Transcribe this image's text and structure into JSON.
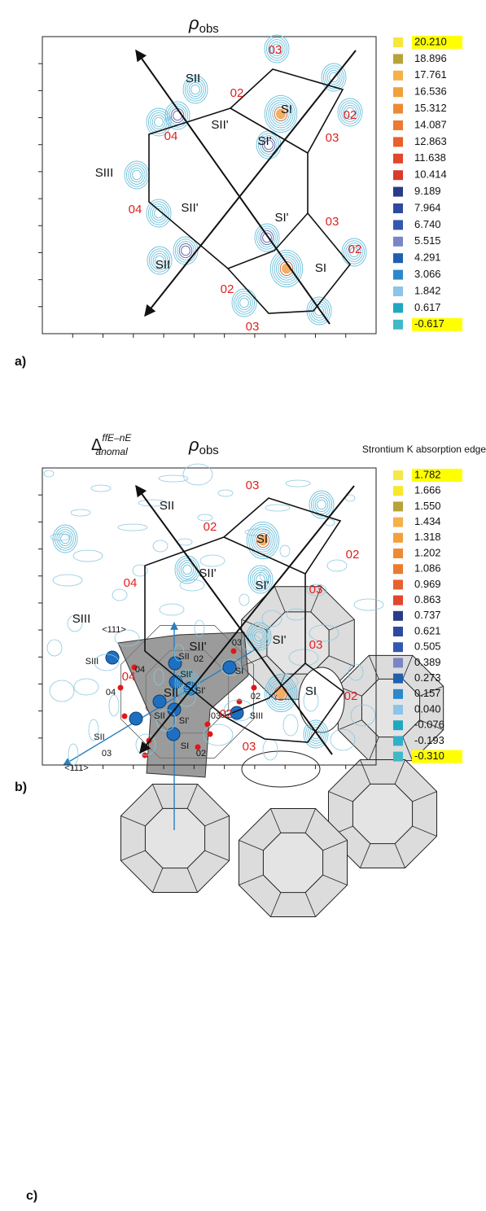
{
  "panels": [
    {
      "label": "a)",
      "title": {
        "symbol": "ρ",
        "subscript": "obs"
      },
      "sites": [
        "03",
        "SII",
        "02",
        "SI",
        "02",
        "SII'",
        "04",
        "SI'",
        "03",
        "SIII",
        "04",
        "SII'",
        "SI'",
        "03",
        "02",
        "SII",
        "SI",
        "02",
        "03"
      ],
      "colorbar": {
        "labels": [
          "20.210",
          "18.896",
          "17.761",
          "16.536",
          "15.312",
          "14.087",
          "12.863",
          "11.638",
          "10.414",
          "9.189",
          "7.964",
          "6.740",
          "5.515",
          "4.291",
          "3.066",
          "1.842",
          "0.617",
          "-0.617"
        ],
        "colors": [
          "#f5e83a",
          "#b8a23a",
          "#f5b04a",
          "#f2a03c",
          "#ef8a34",
          "#ec7a30",
          "#e8602e",
          "#e2462c",
          "#d93a2a",
          "#2a3a8a",
          "#2e4aa0",
          "#3458b0",
          "#7a86c4",
          "#2060b0",
          "#2a88cc",
          "#8cc4ea",
          "#20a8c0",
          "#40b8c8"
        ]
      }
    },
    {
      "label": "b)",
      "prefix": {
        "symbol": "Δ",
        "superscript": "ffE–nE",
        "subscript": "anomal"
      },
      "title": {
        "symbol": "ρ",
        "subscript": "obs"
      },
      "note": "Strontium K absorption edge",
      "sites": [
        "03",
        "SII",
        "02",
        "SI",
        "02",
        "SII'",
        "04",
        "SI'",
        "03",
        "SIII",
        "SII'",
        "SI'",
        "03",
        "04",
        "SII",
        "SI",
        "02",
        "02",
        "03"
      ],
      "colorbar": {
        "labels": [
          "1.782",
          "1.666",
          "1.550",
          "1.434",
          "1.318",
          "1.202",
          "1.086",
          "0.969",
          "0.863",
          "0.737",
          "0.621",
          "0.505",
          "0.389",
          "0.273",
          "0.157",
          "0.040",
          "-0.076",
          "-0.193",
          "-0.310"
        ],
        "colors": [
          "#f5e84a",
          "#f7e82a",
          "#b8a23a",
          "#f5b04a",
          "#f2a03c",
          "#ef8a34",
          "#ec7a30",
          "#e8602e",
          "#e2462c",
          "#2a3a8a",
          "#2e4aa0",
          "#3458b0",
          "#7a86c4",
          "#2060b0",
          "#2a88cc",
          "#8cc4ea",
          "#20a8c0",
          "#30b0c8",
          "#40b8c8"
        ]
      }
    },
    {
      "label": "c)",
      "sites": [
        "<111>",
        "03",
        "SII",
        "02",
        "SIII",
        "04",
        "SII'",
        "SI",
        "SI'",
        "02",
        "04",
        "SII",
        "SI'",
        "03",
        "SIII",
        "SII",
        "<111>",
        "SI",
        "03",
        "02"
      ]
    }
  ]
}
